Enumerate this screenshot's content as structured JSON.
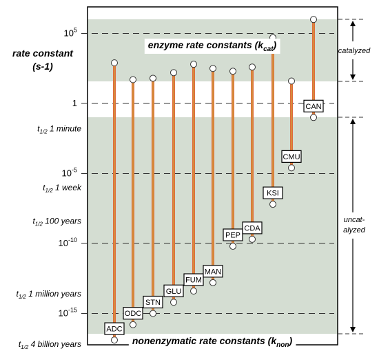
{
  "chart_data": {
    "type": "dumbbell",
    "y_axis": {
      "scale": "log10",
      "ylim_exponent": [
        -17.3,
        6.8
      ],
      "ylabel_line1": "rate constant",
      "ylabel_line2": "(s-1)",
      "tick_labels": [
        {
          "exp": 5,
          "base": "10",
          "sup": "5"
        },
        {
          "exp": 0,
          "base": "1",
          "sup": ""
        },
        {
          "exp": -5,
          "base": "10",
          "sup": "-5"
        },
        {
          "exp": -10,
          "base": "10",
          "sup": "-10"
        },
        {
          "exp": -15,
          "base": "10",
          "sup": "-15"
        }
      ],
      "half_life_labels": [
        {
          "exp": -1.8,
          "sub": "1/2",
          "text": "1 minute"
        },
        {
          "exp": -6.0,
          "sub": "1/2",
          "text": "1 week"
        },
        {
          "exp": -8.4,
          "sub": "1/2",
          "text": "100 years"
        },
        {
          "exp": -13.6,
          "sub": "1/2",
          "text": "1 million years"
        },
        {
          "exp": -17.2,
          "sub": "1/2",
          "text": "4 billion years"
        }
      ]
    },
    "top_band_label": {
      "text": "enzyme rate constants (k",
      "sub": "cat",
      "close": ")"
    },
    "bottom_band_label": {
      "text": "nonenzymatic rate constants (k",
      "sub": "non",
      "close": ")"
    },
    "right_labels": {
      "catalyzed": "catalyzed",
      "uncatalyzed_line1": "uncat-",
      "uncatalyzed_line2": "alyzed"
    },
    "enzymes": [
      {
        "name": "ADC",
        "kcat_exp": 2.9,
        "knon_exp": -16.9
      },
      {
        "name": "ODC",
        "kcat_exp": 1.7,
        "knon_exp": -15.8
      },
      {
        "name": "STN",
        "kcat_exp": 1.8,
        "knon_exp": -15.0
      },
      {
        "name": "GLU",
        "kcat_exp": 2.2,
        "knon_exp": -14.2
      },
      {
        "name": "FUM",
        "kcat_exp": 2.8,
        "knon_exp": -13.4
      },
      {
        "name": "MAN",
        "kcat_exp": 2.5,
        "knon_exp": -12.8
      },
      {
        "name": "PEP",
        "kcat_exp": 2.3,
        "knon_exp": -10.2
      },
      {
        "name": "CDA",
        "kcat_exp": 2.6,
        "knon_exp": -9.7
      },
      {
        "name": "KSI",
        "kcat_exp": 4.7,
        "knon_exp": -7.2
      },
      {
        "name": "CMU",
        "kcat_exp": 1.6,
        "knon_exp": -4.6
      },
      {
        "name": "CAN",
        "kcat_exp": 6.0,
        "knon_exp": -1.0
      }
    ],
    "grid": "dashed reference lines at each labelled decade",
    "colors": {
      "band": "#d4ddd2",
      "line": "#e06a3d",
      "line_core": "#c9b23a",
      "frame": "#000000"
    }
  }
}
